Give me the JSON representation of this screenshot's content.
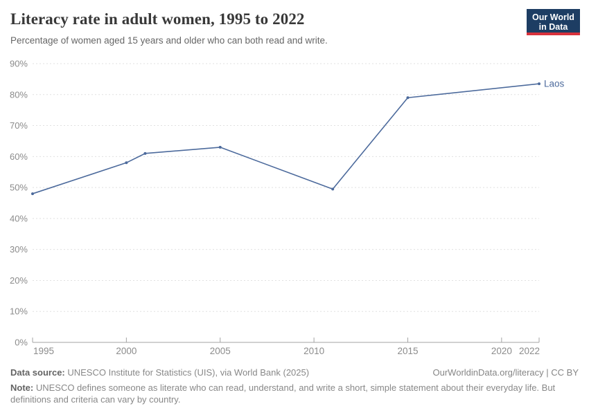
{
  "header": {
    "title": "Literacy rate in adult women, 1995 to 2022",
    "subtitle": "Percentage of women aged 15 years and older who can both read and write.",
    "logo": {
      "line1": "Our World",
      "line2": "in Data",
      "bg_color": "#1d3d63",
      "accent_color": "#d8323c"
    }
  },
  "chart_data": {
    "type": "line",
    "title": "Literacy rate in adult women, 1995 to 2022",
    "xlabel": "",
    "ylabel": "",
    "xlim": [
      1995,
      2022
    ],
    "ylim": [
      0,
      90
    ],
    "x_ticks": [
      1995,
      2000,
      2005,
      2010,
      2015,
      2020,
      2022
    ],
    "y_ticks": [
      0,
      10,
      20,
      30,
      40,
      50,
      60,
      70,
      80,
      90
    ],
    "y_tick_suffix": "%",
    "grid": true,
    "grid_color": "#e0e0e0",
    "axis_color": "#a3a3a3",
    "tick_label_color": "#8b8b8b",
    "legend_position": "end-of-line-label",
    "series": [
      {
        "name": "Laos",
        "color": "#4C6A9C",
        "points": [
          {
            "x": 1995,
            "y": 48
          },
          {
            "x": 2000,
            "y": 58
          },
          {
            "x": 2001,
            "y": 61
          },
          {
            "x": 2005,
            "y": 63
          },
          {
            "x": 2011,
            "y": 49.5
          },
          {
            "x": 2015,
            "y": 79
          },
          {
            "x": 2022,
            "y": 83.5
          }
        ]
      }
    ]
  },
  "footer": {
    "data_source_label": "Data source:",
    "data_source_text": " UNESCO Institute for Statistics (UIS), via World Bank (2025)",
    "attribution": "OurWorldinData.org/literacy | CC BY",
    "note_label": "Note:",
    "note_text": " UNESCO defines someone as literate who can read, understand, and write a short, simple statement about their everyday life. But definitions and criteria can vary by country."
  }
}
